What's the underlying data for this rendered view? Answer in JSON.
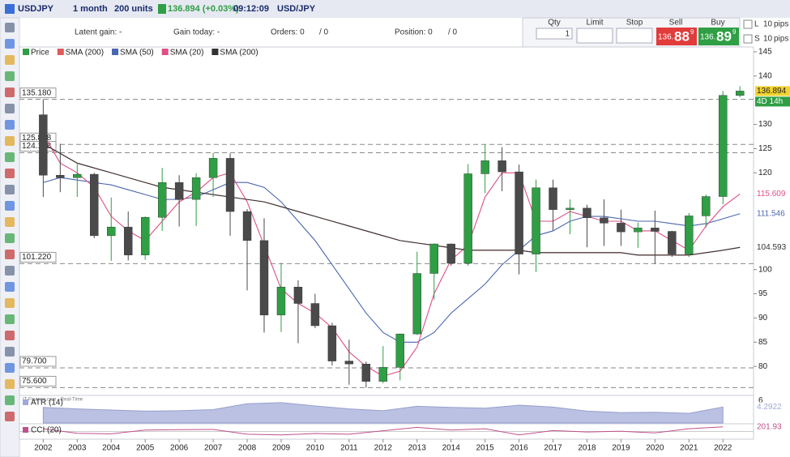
{
  "toolbar": {
    "symbol": "USDJPY",
    "period": "1 month",
    "units": "200 units",
    "quote": "136.894 (+0.03%)",
    "time": "09:12:09",
    "pair": "USD/JPY"
  },
  "status": {
    "latent_gain": "Latent gain: -",
    "gain_today": "Gain today: -",
    "orders": "Orders: 0",
    "orders_total": "/ 0",
    "position": "Position: 0",
    "position_total": "/ 0"
  },
  "order_panel": {
    "qty_label": "Qty",
    "qty": "1",
    "limit_label": "Limit",
    "stop_label": "Stop",
    "sell_label": "Sell",
    "buy_label": "Buy",
    "sell_prefix": "136.",
    "sell_big": "88",
    "sell_sup": "9",
    "buy_prefix": "136.",
    "buy_big": "89",
    "buy_sup": "9",
    "pips": [
      {
        "mode": "L",
        "value": "10",
        "unit": "pips"
      },
      {
        "mode": "S",
        "value": "10",
        "unit": "pips"
      }
    ]
  },
  "chart_data": {
    "type": "candlestick",
    "source": "IT-Finance.com - Real-Time",
    "countdown": "4D 14h",
    "x": [
      2002,
      2002.5,
      2003,
      2003.5,
      2004,
      2004.5,
      2005,
      2005.5,
      2006,
      2006.5,
      2007,
      2007.5,
      2008,
      2008.5,
      2009,
      2009.5,
      2010,
      2010.5,
      2011,
      2011.5,
      2012,
      2012.5,
      2013,
      2013.5,
      2014,
      2014.5,
      2015,
      2015.5,
      2016,
      2016.5,
      2017,
      2017.5,
      2018,
      2018.5,
      2019,
      2019.5,
      2020,
      2020.5,
      2021,
      2021.5,
      2022,
      2022.5
    ],
    "xlim": [
      2001.3,
      2022.9
    ],
    "xticks": [
      2002,
      2003,
      2004,
      2005,
      2006,
      2007,
      2008,
      2009,
      2010,
      2011,
      2012,
      2013,
      2014,
      2015,
      2016,
      2017,
      2018,
      2019,
      2020,
      2021,
      2022
    ],
    "ylim": [
      74.5,
      146
    ],
    "yticks": [
      145,
      140,
      130,
      125,
      120,
      100,
      95,
      90,
      85,
      80
    ],
    "up_color": "#2f9e44",
    "down_color": "#4a4a4a",
    "levels": [
      {
        "value": 135.18,
        "label": "135.180"
      },
      {
        "value": 125.858,
        "label": "125.858"
      },
      {
        "value": 124.138,
        "label": "124.138"
      },
      {
        "value": 101.22,
        "label": "101.220"
      },
      {
        "value": 79.7,
        "label": "79.700"
      },
      {
        "value": 75.6,
        "label": "75.600"
      }
    ],
    "series": [
      {
        "name": "Price",
        "color": "#2f9e44",
        "open": [
          132,
          119.5,
          119,
          119.7,
          107,
          108.8,
          103,
          110.8,
          118,
          114.5,
          119,
          123,
          112,
          106,
          90.6,
          96.4,
          93,
          88.4,
          81.1,
          80.5,
          76.9,
          79.8,
          86.7,
          99.2,
          105.3,
          101.3,
          119.8,
          122.5,
          120.2,
          103.2,
          116.9,
          112.4,
          112.7,
          110.7,
          109.6,
          107.8,
          108.6,
          107.9,
          103.2,
          111.1,
          115.1,
          136
        ],
        "high": [
          135.18,
          126,
          122,
          120,
          114.9,
          112,
          111,
          121,
          119.5,
          119.9,
          124.1,
          124,
          112.5,
          110.6,
          101.4,
          97.8,
          95,
          89,
          85.5,
          81,
          84.2,
          86.8,
          103.7,
          105.4,
          105.4,
          121.8,
          125.858,
          125.3,
          121.7,
          118.6,
          118.6,
          114.5,
          113.4,
          114.5,
          112.4,
          109.7,
          112.2,
          108,
          111.7,
          115.5,
          136.9,
          137.9
        ],
        "low": [
          115,
          116,
          115,
          106.5,
          101.8,
          101.9,
          102,
          108,
          108.9,
          109,
          115,
          107,
          95.7,
          87,
          87.1,
          84.8,
          87.9,
          80.2,
          76.2,
          75.6,
          76.5,
          77.1,
          86.5,
          93.8,
          100.8,
          100.8,
          115.8,
          116.2,
          99,
          99.5,
          108.1,
          107.3,
          104.6,
          104.9,
          104.9,
          104.5,
          101.22,
          102.6,
          102.6,
          108.7,
          113.5,
          135.6
        ],
        "close": [
          119.5,
          119,
          119.7,
          107,
          108.8,
          103,
          110.8,
          118,
          114.5,
          119,
          123,
          112,
          106,
          90.6,
          96.4,
          93,
          88.4,
          81.1,
          80.5,
          76.9,
          79.8,
          86.7,
          99.2,
          105.3,
          101.3,
          119.8,
          122.5,
          120.2,
          103.2,
          116.9,
          112.4,
          112.7,
          110.7,
          109.6,
          107.8,
          108.6,
          107.9,
          103.2,
          111.1,
          115.1,
          136,
          136.894
        ]
      },
      {
        "name": "SMA (200)",
        "color": "#e05a5a",
        "values": [
          126,
          124,
          122,
          121,
          120,
          119,
          118,
          117,
          116.5,
          116,
          115.5,
          115,
          114.5,
          114,
          113,
          112,
          111,
          110,
          109,
          108,
          107,
          106,
          105.5,
          105,
          104.5,
          104,
          104,
          104,
          104,
          103.5,
          103.5,
          103.5,
          103.5,
          103.5,
          103.5,
          103,
          103,
          103,
          103,
          103.5,
          104,
          104.593
        ]
      },
      {
        "name": "SMA (50)",
        "color": "#4a66b0",
        "values": [
          118,
          119,
          118.5,
          118,
          117.5,
          116.5,
          115.5,
          114.5,
          114.5,
          115,
          116.5,
          118,
          118,
          117,
          114,
          110,
          106,
          101,
          96,
          91,
          87,
          85,
          85,
          87,
          91,
          94,
          97,
          101,
          104,
          107,
          108,
          110,
          111,
          111,
          110.5,
          110,
          110,
          109.5,
          109,
          109.5,
          110.5,
          111.546
        ]
      },
      {
        "name": "SMA (20)",
        "color": "#dd4f86",
        "values": [
          128,
          122,
          120,
          117,
          111,
          108,
          106,
          110,
          114,
          116,
          119,
          120,
          114,
          105,
          96,
          93,
          91,
          88,
          83,
          80,
          78,
          79,
          84,
          95,
          102,
          105,
          115,
          120,
          120,
          110,
          110,
          112,
          111,
          110,
          110,
          108,
          108,
          106,
          104,
          109,
          113,
          115.609
        ]
      },
      {
        "name": "SMA (200)",
        "color": "#333333",
        "values": [
          126,
          124,
          122,
          121,
          120,
          119,
          118,
          117,
          116.5,
          116,
          115.5,
          115,
          114.5,
          114,
          113,
          112,
          111,
          110,
          109,
          108,
          107,
          106,
          105.5,
          105,
          104.5,
          104,
          104,
          104,
          104,
          103.5,
          103.5,
          103.5,
          103.5,
          103.5,
          103.5,
          103,
          103,
          103,
          103,
          103.5,
          104,
          104.593
        ]
      }
    ],
    "indicators": [
      {
        "name": "ATR (14)",
        "color": "#9fa8d8",
        "ylim": [
          0,
          7
        ],
        "yticks": [
          6
        ],
        "values": [
          4.2,
          3.8,
          3.5,
          3.2,
          3.3,
          3.6,
          5.2,
          5.5,
          4.6,
          3.8,
          3.3,
          4.5,
          4.2,
          4,
          4.8,
          4.3,
          3.2,
          2.8,
          2.9,
          2.6,
          4.2922
        ]
      },
      {
        "name": "CCI (20)",
        "color": "#c0508a",
        "ylim": [
          -300,
          300
        ],
        "yticks": [],
        "values": [
          120,
          -80,
          -100,
          60,
          80,
          90,
          -120,
          -150,
          -90,
          -120,
          30,
          180,
          60,
          120,
          -150,
          40,
          -20,
          10,
          -60,
          120,
          201.93
        ]
      }
    ]
  }
}
